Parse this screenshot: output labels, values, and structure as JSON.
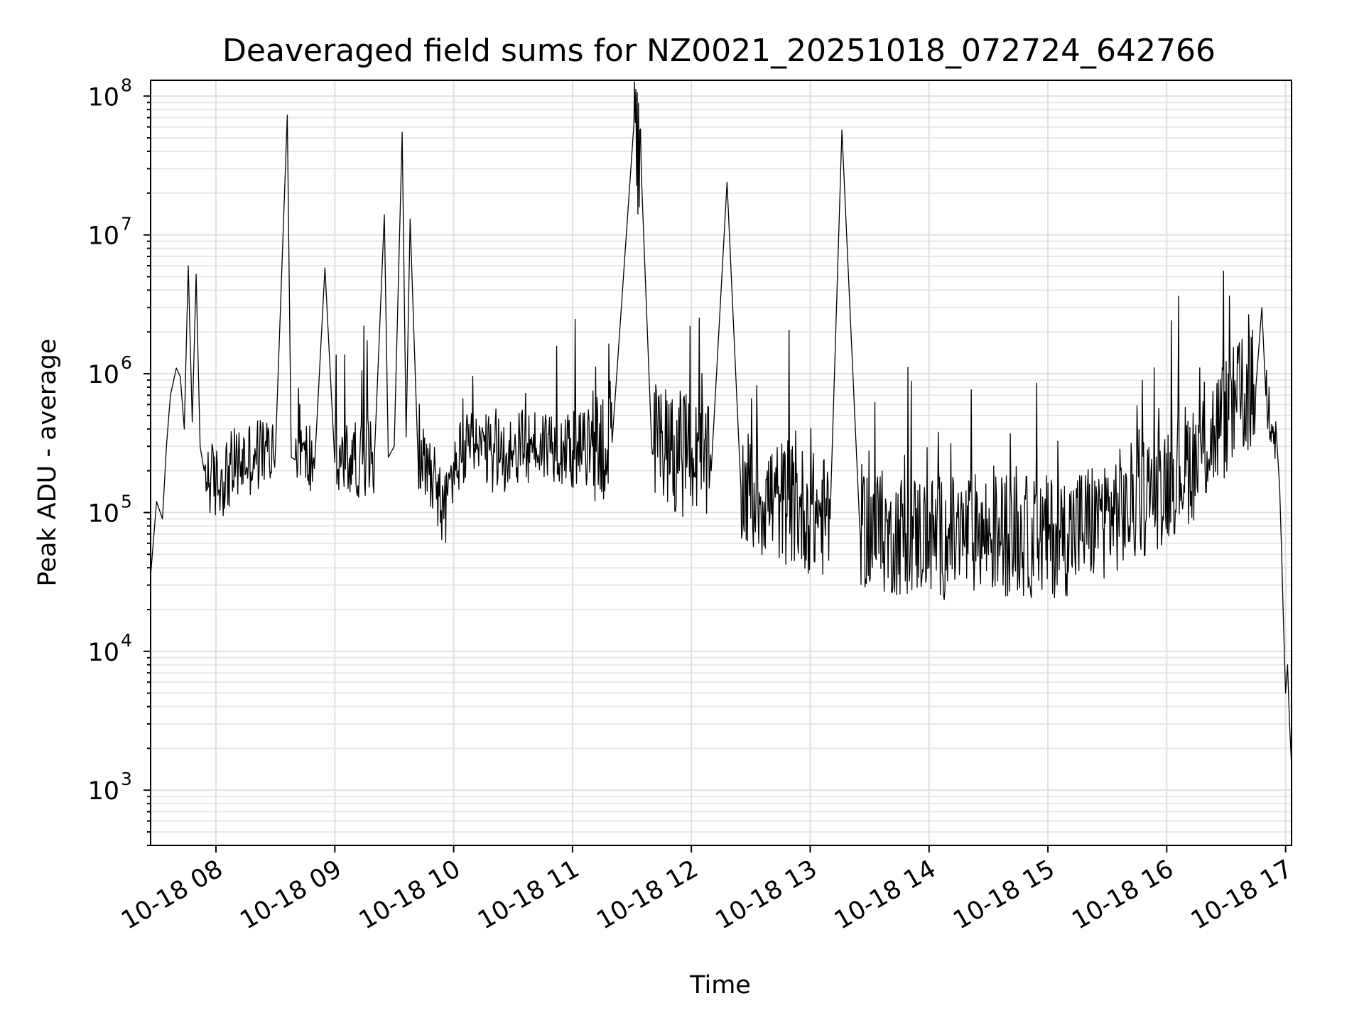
{
  "chart_data": {
    "type": "line",
    "title": "Deaveraged field sums for NZ0021_20251018_072724_642766",
    "xlabel": "Time",
    "ylabel": "Peak ADU - average",
    "y_scale": "log",
    "ylim": [
      400,
      130000000
    ],
    "xlim": [
      "10-18 07:27",
      "10-18 17:03"
    ],
    "grid": true,
    "line_color": "#000000",
    "x_ticks": [
      "10-18 08",
      "10-18 09",
      "10-18 10",
      "10-18 11",
      "10-18 12",
      "10-18 13",
      "10-18 14",
      "10-18 15",
      "10-18 16",
      "10-18 17"
    ],
    "y_ticks": [
      {
        "value": 1000,
        "base": "10",
        "exp": "3"
      },
      {
        "value": 10000,
        "base": "10",
        "exp": "4"
      },
      {
        "value": 100000,
        "base": "10",
        "exp": "5"
      },
      {
        "value": 1000000,
        "base": "10",
        "exp": "6"
      },
      {
        "value": 10000000,
        "base": "10",
        "exp": "7"
      },
      {
        "value": 100000000,
        "base": "10",
        "exp": "8"
      }
    ],
    "series": [
      {
        "x": [
          "10-18 07:27",
          "10-18 07:30",
          "10-18 07:33",
          "10-18 07:35",
          "10-18 07:37",
          "10-18 07:40",
          "10-18 07:42",
          "10-18 07:44",
          "10-18 07:46",
          "10-18 07:48",
          "10-18 07:50",
          "10-18 07:52",
          "10-18 07:54",
          "10-18 08:00",
          "10-18 08:10",
          "10-18 08:20",
          "10-18 08:30",
          "10-18 08:36",
          "10-18 08:38",
          "10-18 08:40",
          "10-18 08:50",
          "10-18 08:55",
          "10-18 09:00",
          "10-18 09:10",
          "10-18 09:20",
          "10-18 09:25",
          "10-18 09:27",
          "10-18 09:30",
          "10-18 09:34",
          "10-18 09:36",
          "10-18 09:38",
          "10-18 09:42",
          "10-18 09:50",
          "10-18 09:55",
          "10-18 10:00",
          "10-18 10:10",
          "10-18 10:20",
          "10-18 10:30",
          "10-18 10:40",
          "10-18 10:50",
          "10-18 11:00",
          "10-18 11:10",
          "10-18 11:20",
          "10-18 11:31",
          "10-18 11:35",
          "10-18 11:40",
          "10-18 11:50",
          "10-18 12:00",
          "10-18 12:10",
          "10-18 12:18",
          "10-18 12:25",
          "10-18 12:35",
          "10-18 12:45",
          "10-18 12:55",
          "10-18 13:00",
          "10-18 13:10",
          "10-18 13:16",
          "10-18 13:25",
          "10-18 13:40",
          "10-18 13:55",
          "10-18 14:10",
          "10-18 14:25",
          "10-18 14:40",
          "10-18 14:55",
          "10-18 15:10",
          "10-18 15:25",
          "10-18 15:40",
          "10-18 15:55",
          "10-18 16:05",
          "10-18 16:15",
          "10-18 16:25",
          "10-18 16:35",
          "10-18 16:45",
          "10-18 16:48",
          "10-18 16:50",
          "10-18 16:55",
          "10-18 16:57",
          "10-18 16:58",
          "10-18 16:59",
          "10-18 17:00",
          "10-18 17:01",
          "10-18 17:02",
          "10-18 17:03"
        ],
        "values": [
          35000,
          120000,
          90000,
          300000,
          700000,
          1100000,
          950000,
          400000,
          6000000,
          450000,
          5200000,
          300000,
          200000,
          160000,
          220000,
          260000,
          280000,
          73000000,
          250000,
          240000,
          250000,
          5800000,
          230000,
          240000,
          260000,
          14000000,
          250000,
          300000,
          55000000,
          350000,
          13000000,
          250000,
          200000,
          90000,
          230000,
          300000,
          250000,
          280000,
          300000,
          320000,
          280000,
          300000,
          320000,
          63000000,
          22000000,
          300000,
          280000,
          250000,
          200000,
          24000000,
          150000,
          130000,
          120000,
          110000,
          100000,
          90000,
          57000000,
          80000,
          70000,
          70000,
          65000,
          70000,
          70000,
          65000,
          70000,
          90000,
          110000,
          150000,
          200000,
          250000,
          400000,
          600000,
          800000,
          3000000,
          700000,
          450000,
          150000,
          50000,
          15000,
          5000,
          8000,
          3000,
          1500
        ]
      }
    ]
  }
}
